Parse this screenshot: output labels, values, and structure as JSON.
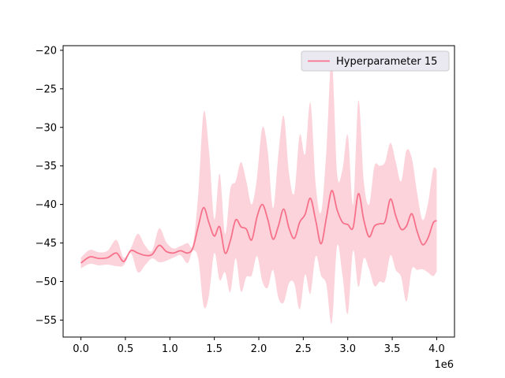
{
  "chart_data": {
    "type": "line",
    "title": "",
    "xlabel": "",
    "ylabel": "",
    "x_offset_label": "1e6",
    "xlim": [
      -200000,
      4200000
    ],
    "ylim": [
      -57.2,
      -19.4
    ],
    "x_ticks": [
      0,
      500000,
      1000000,
      1500000,
      2000000,
      2500000,
      3000000,
      3500000,
      4000000
    ],
    "x_tick_labels": [
      "0.0",
      "0.5",
      "1.0",
      "1.5",
      "2.0",
      "2.5",
      "3.0",
      "3.5",
      "4.0"
    ],
    "y_ticks": [
      -55,
      -50,
      -45,
      -40,
      -35,
      -30,
      -25,
      -20
    ],
    "y_tick_labels": [
      "−55",
      "−50",
      "−45",
      "−40",
      "−35",
      "−30",
      "−25",
      "−20"
    ],
    "grid": false,
    "legend_position": "top-right",
    "series": [
      {
        "name": "Hyperparameter 15",
        "color": "#f7718a",
        "band_color": "#fcd3db",
        "x": [
          0,
          100000,
          200000,
          300000,
          400000,
          480000,
          560000,
          640000,
          720000,
          800000,
          880000,
          960000,
          1040000,
          1120000,
          1200000,
          1260000,
          1320000,
          1380000,
          1440000,
          1500000,
          1560000,
          1620000,
          1680000,
          1740000,
          1800000,
          1860000,
          1920000,
          1980000,
          2040000,
          2100000,
          2160000,
          2220000,
          2280000,
          2340000,
          2400000,
          2460000,
          2520000,
          2580000,
          2640000,
          2700000,
          2760000,
          2820000,
          2880000,
          2940000,
          3000000,
          3060000,
          3120000,
          3180000,
          3240000,
          3300000,
          3360000,
          3420000,
          3480000,
          3540000,
          3600000,
          3660000,
          3720000,
          3780000,
          3840000,
          3900000,
          3960000,
          4000000
        ],
        "y": [
          -47.6,
          -46.8,
          -47.0,
          -46.9,
          -46.3,
          -47.4,
          -46.0,
          -46.3,
          -46.6,
          -46.5,
          -45.3,
          -46.1,
          -46.3,
          -46.0,
          -46.3,
          -45.6,
          -42.8,
          -40.4,
          -42.4,
          -44.1,
          -42.9,
          -46.3,
          -44.7,
          -42.0,
          -42.9,
          -43.2,
          -44.6,
          -41.6,
          -40.0,
          -41.9,
          -44.5,
          -42.8,
          -40.6,
          -43.1,
          -44.4,
          -42.3,
          -41.3,
          -39.2,
          -42.1,
          -45.1,
          -41.7,
          -38.2,
          -40.7,
          -42.3,
          -42.6,
          -43.0,
          -38.6,
          -42.0,
          -44.2,
          -42.8,
          -42.5,
          -42.2,
          -39.3,
          -41.5,
          -43.2,
          -42.8,
          -41.2,
          -43.5,
          -45.2,
          -44.4,
          -42.4,
          -42.1
        ],
        "upper": [
          -46.9,
          -45.9,
          -46.2,
          -46.0,
          -44.6,
          -46.9,
          -45.7,
          -43.8,
          -45.3,
          -46.0,
          -43.1,
          -44.9,
          -45.7,
          -45.4,
          -45.0,
          -45.2,
          -38.5,
          -28.0,
          -33.0,
          -41.9,
          -36.0,
          -43.8,
          -38.0,
          -37.0,
          -34.5,
          -37.0,
          -40.0,
          -36.5,
          -30.0,
          -33.0,
          -40.5,
          -33.5,
          -28.5,
          -36.0,
          -38.5,
          -31.0,
          -33.5,
          -26.8,
          -37.5,
          -41.0,
          -33.0,
          -21.0,
          -36.0,
          -35.5,
          -31.0,
          -40.0,
          -26.5,
          -37.0,
          -40.0,
          -35.0,
          -35.0,
          -34.5,
          -32.0,
          -34.5,
          -37.0,
          -33.0,
          -34.0,
          -38.5,
          -42.0,
          -40.0,
          -35.5,
          -35.5
        ],
        "lower": [
          -48.3,
          -47.7,
          -47.9,
          -47.8,
          -48.0,
          -47.9,
          -46.3,
          -48.8,
          -47.9,
          -47.0,
          -47.5,
          -47.3,
          -46.9,
          -46.6,
          -47.6,
          -46.0,
          -47.1,
          -53.2,
          -51.8,
          -46.3,
          -49.8,
          -48.8,
          -51.4,
          -47.0,
          -51.3,
          -49.4,
          -49.2,
          -46.7,
          -50.0,
          -50.8,
          -48.5,
          -52.1,
          -52.7,
          -50.2,
          -50.3,
          -53.6,
          -49.1,
          -51.6,
          -46.7,
          -49.2,
          -50.4,
          -55.4,
          -45.4,
          -49.1,
          -54.2,
          -46.0,
          -50.7,
          -47.0,
          -48.4,
          -50.6,
          -50.0,
          -49.9,
          -46.6,
          -48.5,
          -49.4,
          -52.6,
          -48.4,
          -48.5,
          -48.4,
          -48.8,
          -49.3,
          -48.7
        ]
      }
    ]
  }
}
